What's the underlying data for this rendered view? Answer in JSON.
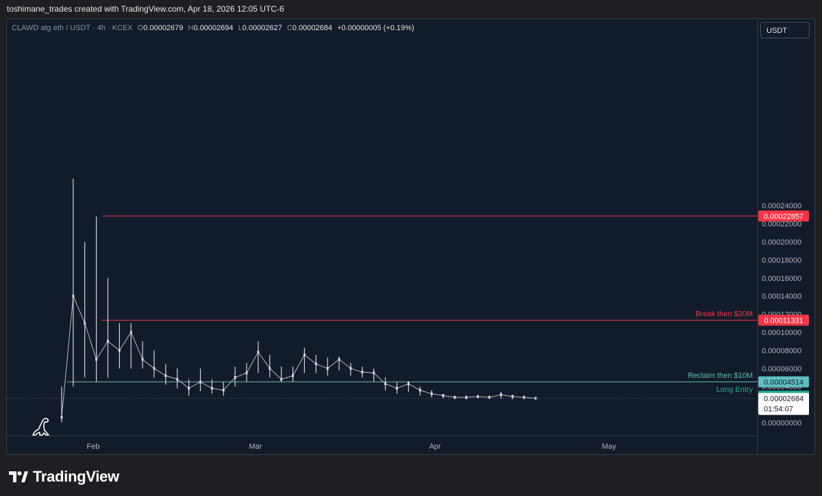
{
  "header": {
    "text": "toshimane_trades created with TradingView.com, Apr 18, 2026 12:05 UTC-6"
  },
  "legend": {
    "symbol": "CLAWD atg eth / USDT · 4h · KCEX",
    "open_label": "O",
    "open": "0.00002679",
    "high_label": "H",
    "high": "0.00002694",
    "low_label": "L",
    "low": "0.00002627",
    "close_label": "C",
    "close": "0.00002684",
    "change": "+0.00000005 (+0.19%)"
  },
  "currency_button": "USDT",
  "colors": {
    "red_line": "#f23645",
    "teal_line": "#5fbfc0",
    "entry_green": "#22ab94",
    "candle": "#d6d8dc",
    "background": "#121b29"
  },
  "footer": {
    "brand": "TradingView",
    "logo_icon": "tradingview-logo-icon"
  },
  "chart_data": {
    "type": "line",
    "series_style": "candlestick",
    "timeframe": "4h",
    "ylim": [
      0,
      0.00026
    ],
    "y_ticks": [
      "0.00024000",
      "0.00022000",
      "0.00020000",
      "0.00018000",
      "0.00016000",
      "0.00014000",
      "0.00012000",
      "0.00010000",
      "0.00008000",
      "0.00006000",
      "0.00004000",
      "0.00000000"
    ],
    "x_ticks": [
      "Feb",
      "Mar",
      "Apr",
      "May"
    ],
    "x": [
      "2026-01-26",
      "2026-01-28",
      "2026-01-30",
      "2026-02-01",
      "2026-02-03",
      "2026-02-05",
      "2026-02-07",
      "2026-02-09",
      "2026-02-11",
      "2026-02-13",
      "2026-02-15",
      "2026-02-17",
      "2026-02-19",
      "2026-02-21",
      "2026-02-23",
      "2026-02-25",
      "2026-02-27",
      "2026-03-01",
      "2026-03-03",
      "2026-03-05",
      "2026-03-07",
      "2026-03-09",
      "2026-03-11",
      "2026-03-13",
      "2026-03-15",
      "2026-03-17",
      "2026-03-19",
      "2026-03-21",
      "2026-03-23",
      "2026-03-25",
      "2026-03-27",
      "2026-03-29",
      "2026-03-31",
      "2026-04-02",
      "2026-04-04",
      "2026-04-06",
      "2026-04-08",
      "2026-04-10",
      "2026-04-12",
      "2026-04-14",
      "2026-04-16",
      "2026-04-18"
    ],
    "close_values": [
      6e-06,
      0.00014,
      0.00011,
      7e-05,
      9e-05,
      8e-05,
      0.0001,
      7e-05,
      6e-05,
      5.2e-05,
      4.8e-05,
      3.8e-05,
      4.5e-05,
      3.8e-05,
      3.6e-05,
      5e-05,
      5.5e-05,
      7.8e-05,
      6e-05,
      4.8e-05,
      5.2e-05,
      7.5e-05,
      6.5e-05,
      6e-05,
      7e-05,
      6e-05,
      5.6e-05,
      5.5e-05,
      4.3e-05,
      3.8e-05,
      4.3e-05,
      3.6e-05,
      3.2e-05,
      3e-05,
      2.8e-05,
      2.8e-05,
      2.9e-05,
      2.8e-05,
      3.1e-05,
      2.9e-05,
      2.8e-05,
      2.7e-05
    ],
    "high_values": [
      4e-05,
      0.00027,
      0.0002,
      0.000228,
      0.00016,
      0.00011,
      0.00011,
      9e-05,
      8e-05,
      6.5e-05,
      6e-05,
      4.8e-05,
      6e-05,
      4.8e-05,
      4.5e-05,
      6.2e-05,
      6.6e-05,
      9e-05,
      7.5e-05,
      6.2e-05,
      6.2e-05,
      8.3e-05,
      7.5e-05,
      7.2e-05,
      7.3e-05,
      6.6e-05,
      6.2e-05,
      6e-05,
      5e-05,
      4.5e-05,
      4.6e-05,
      4e-05,
      3.6e-05,
      3.2e-05,
      3e-05,
      3e-05,
      3e-05,
      3e-05,
      3.4e-05,
      3.1e-05,
      3e-05,
      2.8e-05
    ],
    "low_values": [
      5e-07,
      4e-05,
      5e-05,
      4.5e-05,
      5e-05,
      6e-05,
      6e-05,
      6e-05,
      5e-05,
      4.2e-05,
      3.8e-05,
      3e-05,
      3.5e-05,
      3.2e-05,
      3e-05,
      4e-05,
      4.5e-05,
      5.5e-05,
      5e-05,
      4.5e-05,
      4.5e-05,
      5.5e-05,
      5.5e-05,
      5.2e-05,
      5.8e-05,
      5.2e-05,
      5e-05,
      4.5e-05,
      3.6e-05,
      3.2e-05,
      3.4e-05,
      3e-05,
      2.8e-05,
      2.7e-05,
      2.6e-05,
      2.6e-05,
      2.7e-05,
      2.6e-05,
      2.7e-05,
      2.6e-05,
      2.6e-05,
      2.6e-05
    ],
    "levels": [
      {
        "value": 0.00022857,
        "price_label": "0.00022857",
        "text": "",
        "color": "#f23645"
      },
      {
        "value": 0.00011331,
        "price_label": "0.00011331",
        "text": "Break then $20M",
        "color": "#f23645"
      },
      {
        "value": 4.514e-05,
        "price_label": "0.00004514",
        "text": "Reclaim then $10M",
        "color": "#5fbfc0"
      },
      {
        "value": 2.936e-05,
        "price_label": "0.00002936",
        "text": "Long Entry",
        "color": "#22ab94"
      }
    ],
    "last_price": {
      "value": 2.684e-05,
      "price_label": "0.00002684",
      "countdown": "01:54:07"
    }
  }
}
